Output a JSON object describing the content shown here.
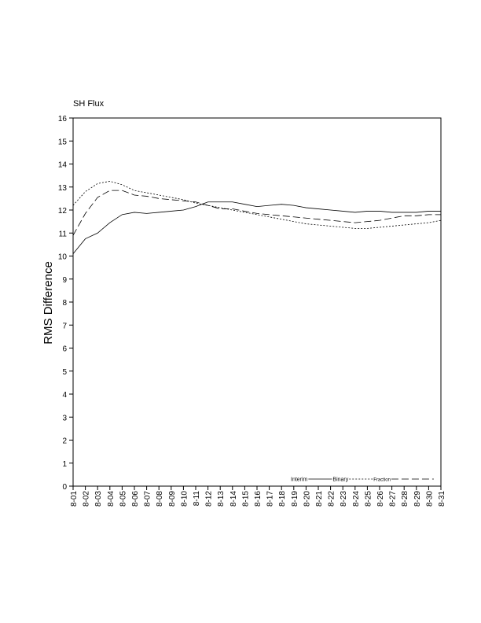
{
  "chart_data": {
    "type": "line",
    "title": "SH Flux",
    "ylabel": "RMS Difference",
    "categories": [
      "8-01",
      "8-02",
      "8-03",
      "8-04",
      "8-05",
      "8-06",
      "8-07",
      "8-08",
      "8-09",
      "8-10",
      "8-11",
      "8-12",
      "8-13",
      "8-14",
      "8-15",
      "8-16",
      "8-17",
      "8-18",
      "8-19",
      "8-20",
      "8-21",
      "8-22",
      "8-23",
      "8-24",
      "8-25",
      "8-26",
      "8-27",
      "8-28",
      "8-29",
      "8-30",
      "8-31"
    ],
    "series": [
      {
        "name": "Interim",
        "color": "#000000",
        "line_style": "solid",
        "values": [
          10.1,
          10.75,
          11.0,
          11.45,
          11.8,
          11.9,
          11.85,
          11.9,
          11.95,
          12.0,
          12.15,
          12.35,
          12.35,
          12.35,
          12.25,
          12.15,
          12.2,
          12.25,
          12.2,
          12.1,
          12.05,
          12.0,
          11.95,
          11.9,
          11.95,
          11.95,
          11.9,
          11.9,
          11.9,
          11.95,
          11.95
        ]
      },
      {
        "name": "Binary",
        "color": "#000000",
        "line_style": "dotted",
        "values": [
          12.2,
          12.8,
          13.15,
          13.25,
          13.1,
          12.85,
          12.75,
          12.65,
          12.55,
          12.45,
          12.3,
          12.2,
          12.1,
          12.0,
          11.9,
          11.8,
          11.7,
          11.6,
          11.5,
          11.4,
          11.35,
          11.3,
          11.25,
          11.2,
          11.2,
          11.25,
          11.3,
          11.35,
          11.4,
          11.45,
          11.55
        ]
      },
      {
        "name": "Fraction",
        "color": "#000000",
        "line_style": "dashed",
        "values": [
          10.9,
          11.85,
          12.55,
          12.85,
          12.85,
          12.65,
          12.6,
          12.5,
          12.45,
          12.4,
          12.35,
          12.2,
          12.05,
          12.05,
          11.95,
          11.85,
          11.8,
          11.75,
          11.7,
          11.65,
          11.6,
          11.55,
          11.5,
          11.45,
          11.5,
          11.55,
          11.65,
          11.75,
          11.75,
          11.8,
          11.8
        ]
      }
    ],
    "ylim": [
      0,
      16
    ],
    "yticks": [
      0,
      1,
      2,
      3,
      4,
      5,
      6,
      7,
      8,
      9,
      10,
      11,
      12,
      13,
      14,
      15,
      16
    ],
    "grid": false,
    "legend_position": "bottom-right"
  }
}
